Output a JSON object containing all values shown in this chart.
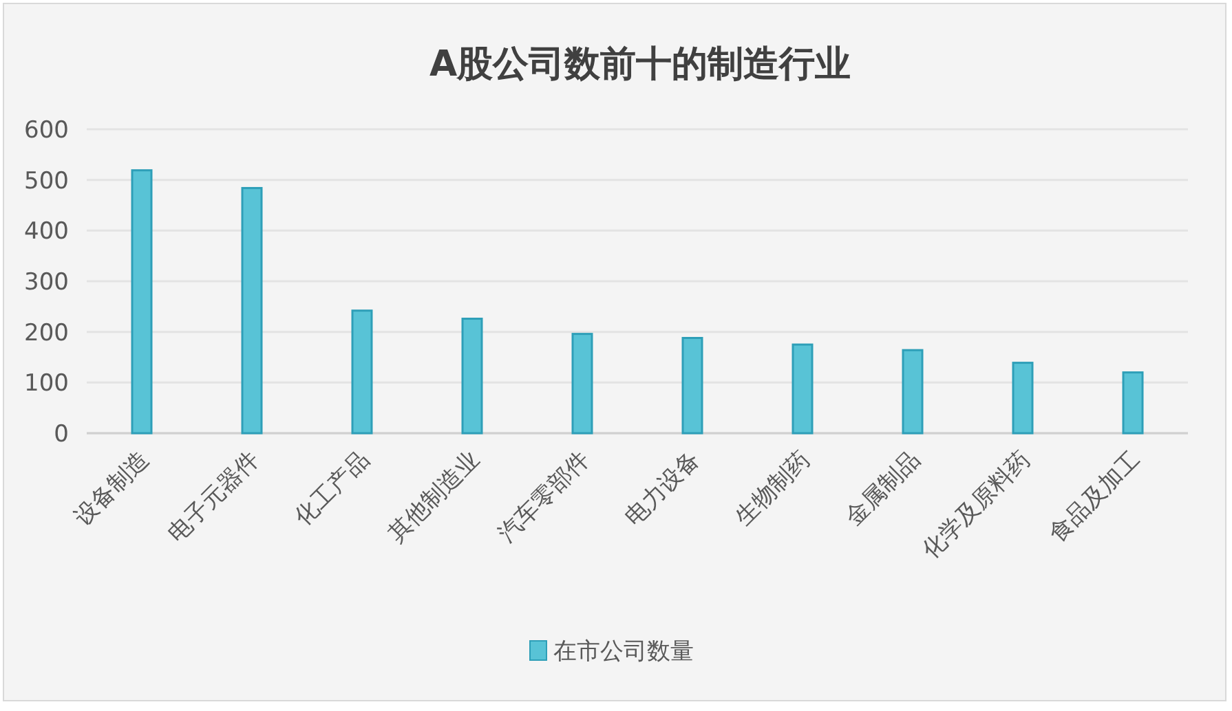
{
  "chart_data": {
    "type": "bar",
    "title": "A股公司数前十的制造行业",
    "categories": [
      "设备制造",
      "电子元器件",
      "化工产品",
      "其他制造业",
      "汽车零部件",
      "电力设备",
      "生物制药",
      "金属制品",
      "化学及原料药",
      "食品及加工"
    ],
    "series": [
      {
        "name": "在市公司数量",
        "color": "#58c3d6",
        "values": [
          519,
          484,
          242,
          226,
          196,
          188,
          175,
          164,
          139,
          120
        ]
      }
    ],
    "ylim": [
      0,
      600
    ],
    "yticks": [
      0,
      100,
      200,
      300,
      400,
      500,
      600
    ],
    "grid": "y",
    "legend": "bottom"
  }
}
